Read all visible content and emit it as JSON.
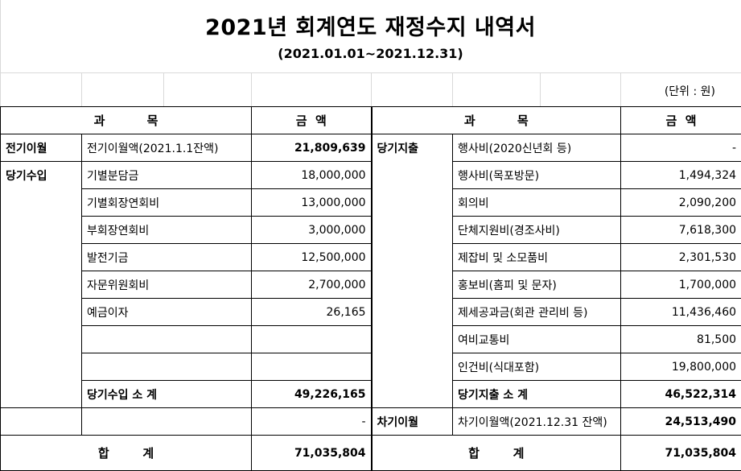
{
  "title": "2021년 회계연도 재정수지 내역서",
  "period": "(2021.01.01~2021.12.31)",
  "unit": "(단위 : 원)",
  "header": {
    "left_item": "과          목",
    "left_amount": "금  액",
    "right_item": "과          목",
    "right_amount": "금  액"
  },
  "rows": [
    {
      "lcat": "전기이월",
      "litem": "전기이월액(2021.1.1잔액)",
      "lamt": "21,809,639",
      "rcat": "당기지출",
      "ritem": "행사비(2020신년회 등)",
      "ramt": "-"
    },
    {
      "lcat": "당기수입",
      "litem": "기별분담금",
      "lamt": "18,000,000",
      "rcat": "",
      "ritem": "행사비(목포방문)",
      "ramt": "1,494,324"
    },
    {
      "lcat": "",
      "litem": "기별회장연회비",
      "lamt": "13,000,000",
      "rcat": "",
      "ritem": "회의비",
      "ramt": "2,090,200"
    },
    {
      "lcat": "",
      "litem": "부회장연회비",
      "lamt": "3,000,000",
      "rcat": "",
      "ritem": "단체지원비(경조사비)",
      "ramt": "7,618,300"
    },
    {
      "lcat": "",
      "litem": "발전기금",
      "lamt": "12,500,000",
      "rcat": "",
      "ritem": "제잡비 및 소모품비",
      "ramt": "2,301,530"
    },
    {
      "lcat": "",
      "litem": "자문위원회비",
      "lamt": "2,700,000",
      "rcat": "",
      "ritem": "홍보비(홈피 및 문자)",
      "ramt": "1,700,000"
    },
    {
      "lcat": "",
      "litem": "예금이자",
      "lamt": "26,165",
      "rcat": "",
      "ritem": "제세공과금(회관 관리비 등)",
      "ramt": "11,436,460"
    },
    {
      "lcat": "",
      "litem": "",
      "lamt": "",
      "rcat": "",
      "ritem": "여비교통비",
      "ramt": "81,500"
    },
    {
      "lcat": "",
      "litem": "",
      "lamt": "",
      "rcat": "",
      "ritem": "인건비(식대포함)",
      "ramt": "19,800,000"
    }
  ],
  "subtotals": {
    "left_label": "당기수입 소 계",
    "left_amount": "49,226,165",
    "right_label": "당기지출 소 계",
    "right_amount": "46,522,314"
  },
  "carry": {
    "left_amount": "-",
    "right_cat": "차기이월",
    "right_item": "차기이월액(2021.12.31 잔액)",
    "right_amount": "24,513,490"
  },
  "totals": {
    "left_label": "합        계",
    "left_amount": "71,035,804",
    "right_label": "합        계",
    "right_amount": "71,035,804"
  }
}
